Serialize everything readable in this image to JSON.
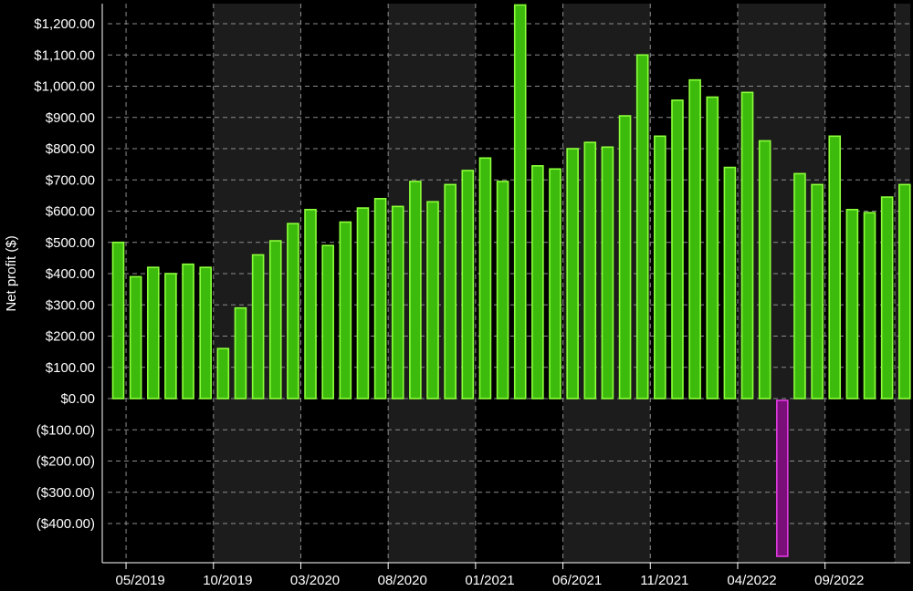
{
  "chart_data": {
    "type": "bar",
    "ylabel": "Net profit ($)",
    "ylim": [
      -500,
      1250
    ],
    "yticks": [
      {
        "value": 1200,
        "label": "$1,200.00"
      },
      {
        "value": 1100,
        "label": "$1,100.00"
      },
      {
        "value": 1000,
        "label": "$1,000.00"
      },
      {
        "value": 900,
        "label": "$900.00"
      },
      {
        "value": 800,
        "label": "$800.00"
      },
      {
        "value": 700,
        "label": "$700.00"
      },
      {
        "value": 600,
        "label": "$600.00"
      },
      {
        "value": 500,
        "label": "$500.00"
      },
      {
        "value": 400,
        "label": "$400.00"
      },
      {
        "value": 300,
        "label": "$300.00"
      },
      {
        "value": 200,
        "label": "$200.00"
      },
      {
        "value": 100,
        "label": "$100.00"
      },
      {
        "value": 0,
        "label": "$0.00"
      },
      {
        "value": -100,
        "label": "($100.00)"
      },
      {
        "value": -200,
        "label": "($200.00)"
      },
      {
        "value": -300,
        "label": "($300.00)"
      },
      {
        "value": -400,
        "label": "($400.00)"
      }
    ],
    "categories": [
      "04/2019",
      "05/2019",
      "06/2019",
      "07/2019",
      "08/2019",
      "09/2019",
      "10/2019",
      "11/2019",
      "12/2019",
      "01/2020",
      "02/2020",
      "03/2020",
      "04/2020",
      "05/2020",
      "06/2020",
      "07/2020",
      "08/2020",
      "09/2020",
      "10/2020",
      "11/2020",
      "12/2020",
      "01/2021",
      "02/2021",
      "03/2021",
      "04/2021",
      "05/2021",
      "06/2021",
      "07/2021",
      "08/2021",
      "09/2021",
      "10/2021",
      "11/2021",
      "12/2021",
      "01/2022",
      "02/2022",
      "03/2022",
      "04/2022",
      "05/2022",
      "06/2022",
      "07/2022",
      "08/2022",
      "09/2022",
      "10/2022",
      "11/2022",
      "12/2022",
      "01/2023"
    ],
    "values": [
      500,
      390,
      420,
      400,
      430,
      420,
      160,
      290,
      460,
      505,
      560,
      605,
      490,
      565,
      610,
      640,
      615,
      695,
      630,
      685,
      730,
      770,
      695,
      1260,
      745,
      735,
      800,
      820,
      805,
      905,
      1100,
      840,
      955,
      1020,
      965,
      740,
      980,
      825,
      -505,
      720,
      685,
      840,
      605,
      595,
      645,
      685
    ],
    "xticks": [
      {
        "index": 1,
        "label": "05/2019"
      },
      {
        "index": 6,
        "label": "10/2019"
      },
      {
        "index": 11,
        "label": "03/2020"
      },
      {
        "index": 16,
        "label": "08/2020"
      },
      {
        "index": 21,
        "label": "01/2021"
      },
      {
        "index": 26,
        "label": "06/2021"
      },
      {
        "index": 31,
        "label": "11/2021"
      },
      {
        "index": 36,
        "label": "04/2022"
      },
      {
        "index": 41,
        "label": "09/2022"
      }
    ],
    "grid": true,
    "legend": "none",
    "colors": {
      "background": "#000000",
      "band": "#1c1c1c",
      "grid": "#8c8c8c",
      "positive_fill": "#3dbb0c",
      "positive_edge": "#8cff3a",
      "negative_fill": "#7a0f7a",
      "negative_edge": "#e03ae0",
      "text": "#ffffff"
    }
  }
}
